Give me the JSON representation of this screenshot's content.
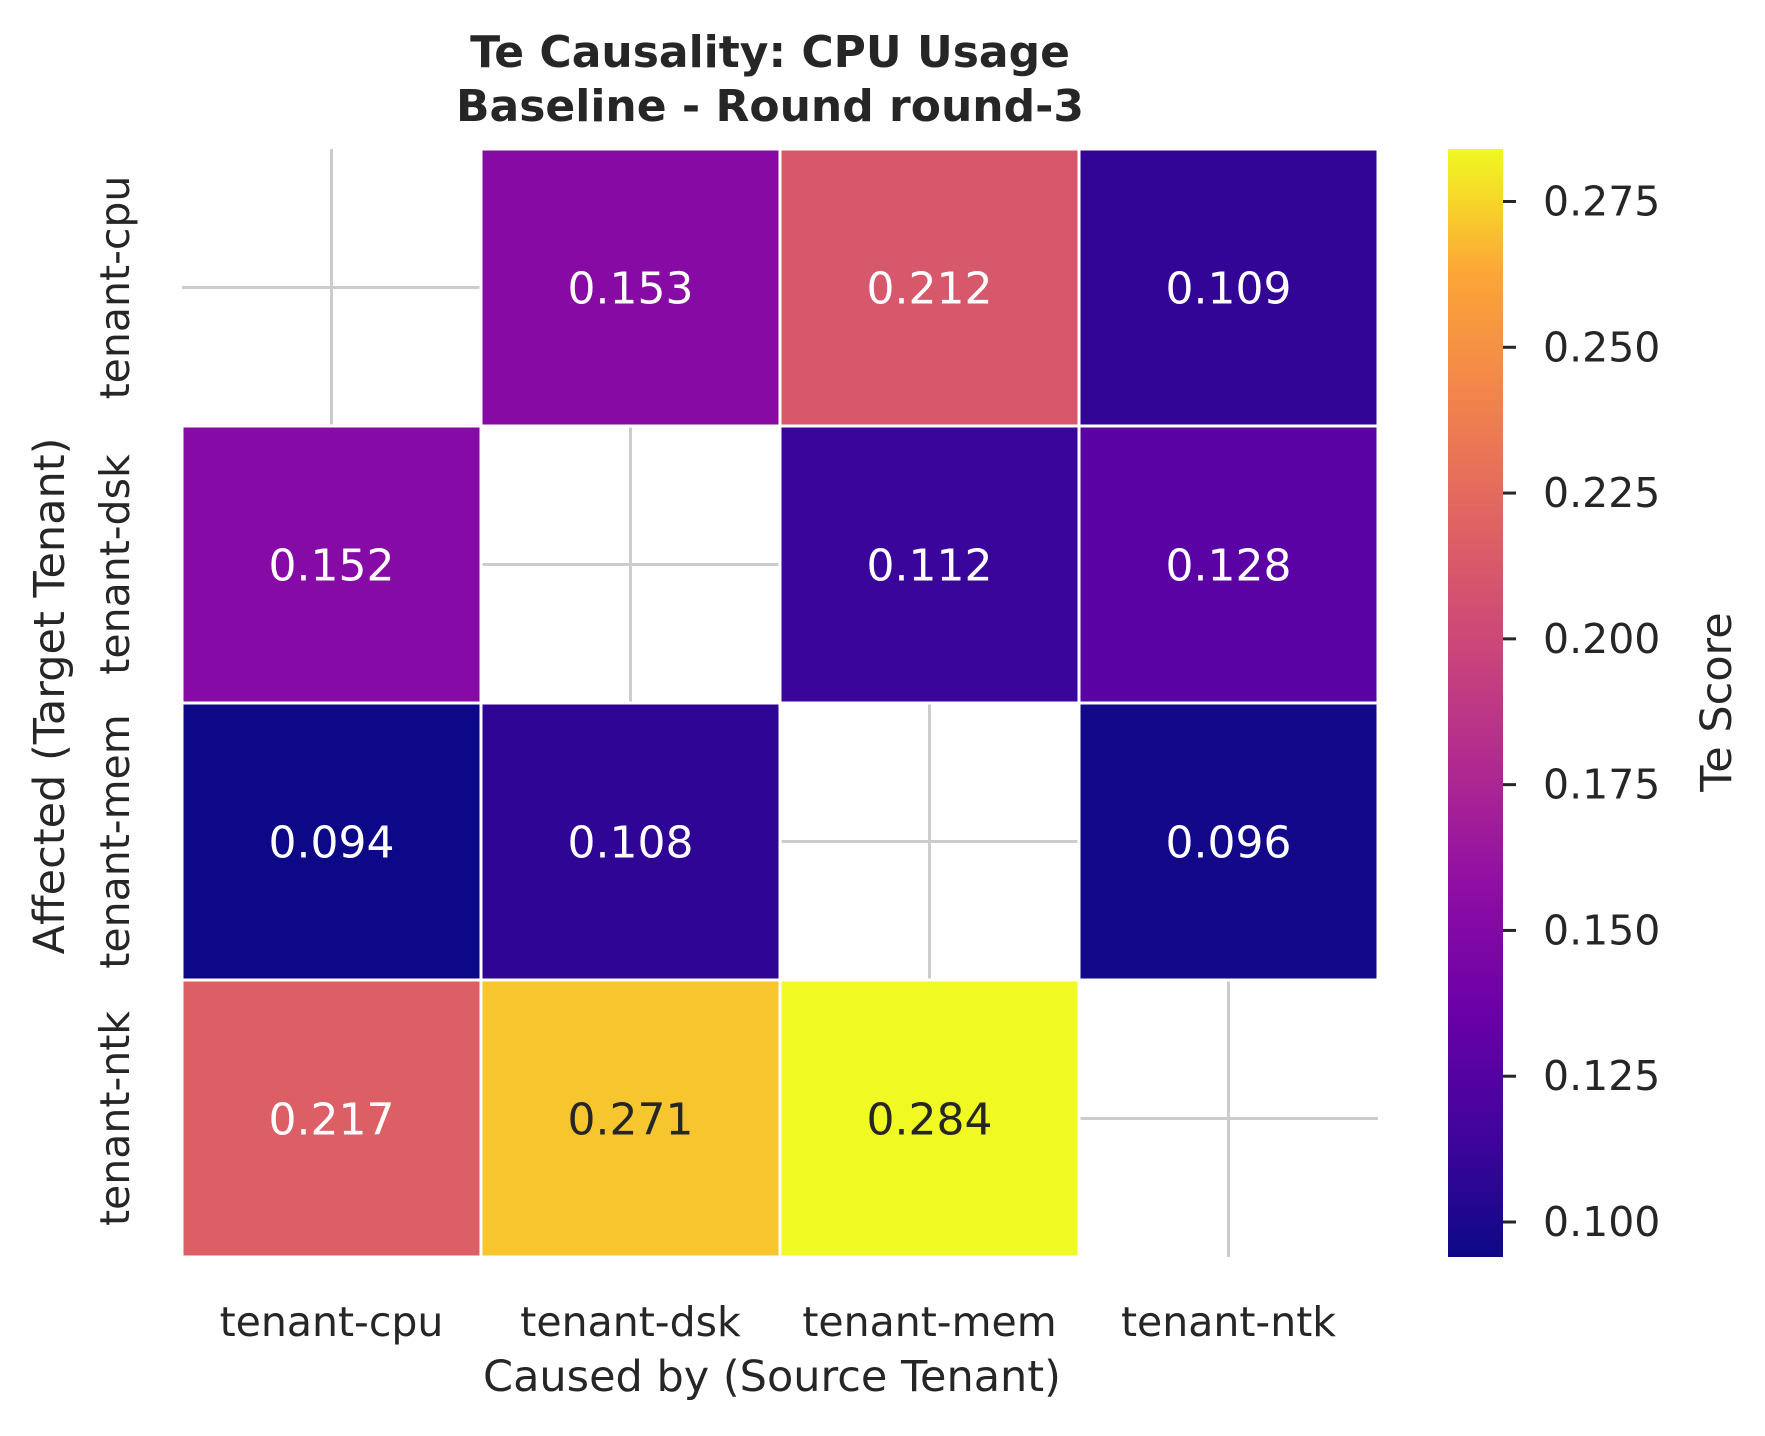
{
  "chart_data": {
    "type": "heatmap",
    "title_lines": [
      "Te Causality: CPU Usage",
      "Baseline - Round round-3"
    ],
    "xlabel": "Caused by (Source Tenant)",
    "ylabel": "Affected (Target Tenant)",
    "x_categories": [
      "tenant-cpu",
      "tenant-dsk",
      "tenant-mem",
      "tenant-ntk"
    ],
    "y_categories": [
      "tenant-cpu",
      "tenant-dsk",
      "tenant-mem",
      "tenant-ntk"
    ],
    "values": [
      [
        null,
        0.153,
        0.212,
        0.109
      ],
      [
        0.152,
        null,
        0.112,
        0.128
      ],
      [
        0.094,
        0.108,
        null,
        0.096
      ],
      [
        0.217,
        0.271,
        0.284,
        null
      ]
    ],
    "cell_labels": [
      [
        null,
        "0.153",
        "0.212",
        "0.109"
      ],
      [
        "0.152",
        null,
        "0.112",
        "0.128"
      ],
      [
        "0.094",
        "0.108",
        null,
        "0.096"
      ],
      [
        "0.217",
        "0.271",
        "0.284",
        null
      ]
    ],
    "colormap": "plasma",
    "colorbar": {
      "label": "Te Score",
      "range": [
        0.094,
        0.284
      ],
      "ticks": [
        0.1,
        0.125,
        0.15,
        0.175,
        0.2,
        0.225,
        0.25,
        0.275
      ],
      "tick_labels": [
        "0.100",
        "0.125",
        "0.150",
        "0.175",
        "0.200",
        "0.225",
        "0.250",
        "0.275"
      ]
    },
    "grid": true
  }
}
